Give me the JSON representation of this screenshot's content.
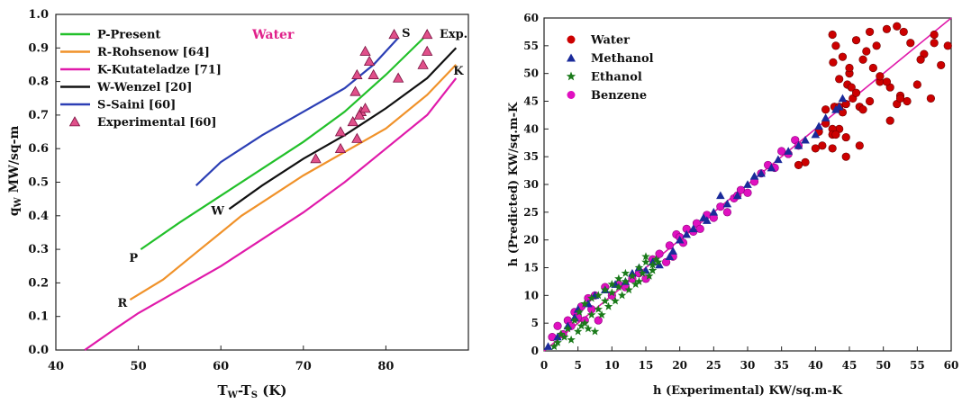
{
  "chart_data": [
    {
      "type": "line",
      "title": "",
      "annotation": "Water",
      "xlabel_main": "T",
      "xlabel_sub1": "W",
      "xlabel_mid": "-T",
      "xlabel_sub2": "S",
      "xlabel_unit": " (K)",
      "ylabel_main": "q",
      "ylabel_sub": "W",
      "ylabel_unit": " MW/sq-m",
      "xlim": [
        40,
        90
      ],
      "ylim": [
        0,
        1.0
      ],
      "xticks": [
        "40",
        "50",
        "60",
        "70",
        "80"
      ],
      "xtick_values": [
        40,
        50,
        60,
        70,
        80
      ],
      "yticks": [
        "0.0",
        "0.1",
        "0.2",
        "0.3",
        "0.4",
        "0.5",
        "0.6",
        "0.7",
        "0.8",
        "0.9",
        "1.0"
      ],
      "ytick_values": [
        0,
        0.1,
        0.2,
        0.3,
        0.4,
        0.5,
        0.6,
        0.7,
        0.8,
        0.9,
        1.0
      ],
      "grid": false,
      "legend_position": "top-left",
      "series": [
        {
          "name": "P-Present",
          "tag": "P",
          "color": "#22c02a",
          "x": [
            50.3,
            55,
            60,
            65,
            70,
            75,
            80,
            85
          ],
          "y": [
            0.3,
            0.38,
            0.46,
            0.54,
            0.62,
            0.71,
            0.82,
            0.94
          ]
        },
        {
          "name": "R-Rohsenow [64]",
          "tag": "R",
          "color": "#f0922a",
          "x": [
            49,
            53,
            57,
            60,
            62.5,
            65,
            70,
            75,
            80,
            85,
            88.5
          ],
          "y": [
            0.15,
            0.21,
            0.29,
            0.35,
            0.4,
            0.44,
            0.52,
            0.59,
            0.66,
            0.76,
            0.85
          ]
        },
        {
          "name": "K-Kutateladze [71]",
          "tag": "K",
          "color": "#e01aaa",
          "x": [
            43.5,
            47,
            50,
            55,
            60,
            65,
            70,
            75,
            80,
            85,
            88.5
          ],
          "y": [
            0.0,
            0.06,
            0.11,
            0.18,
            0.25,
            0.33,
            0.41,
            0.5,
            0.6,
            0.7,
            0.81
          ]
        },
        {
          "name": "W-Wenzel [20]",
          "tag": "W",
          "color": "#111111",
          "x": [
            61,
            65,
            70,
            75,
            80,
            85,
            88.5
          ],
          "y": [
            0.42,
            0.49,
            0.57,
            0.64,
            0.72,
            0.81,
            0.9
          ]
        },
        {
          "name": "S-Saini [60]",
          "tag": "S",
          "color": "#2c3fb5",
          "x": [
            57,
            60,
            65,
            70,
            75,
            78.5,
            81.5
          ],
          "y": [
            0.49,
            0.56,
            0.64,
            0.71,
            0.78,
            0.85,
            0.93
          ]
        },
        {
          "name": "Experimental [60]",
          "tag": "Exp.",
          "color": "#e0508a",
          "marker": "triangle",
          "x": [
            71.5,
            74.5,
            74.5,
            76,
            76.5,
            77,
            76.8,
            77.5,
            76.3,
            78.5,
            78,
            77.5,
            76.5,
            81.5,
            81,
            85,
            84.5,
            85
          ],
          "y": [
            0.57,
            0.6,
            0.65,
            0.68,
            0.63,
            0.71,
            0.7,
            0.72,
            0.77,
            0.82,
            0.86,
            0.89,
            0.82,
            0.81,
            0.94,
            0.94,
            0.85,
            0.89
          ]
        }
      ]
    },
    {
      "type": "scatter",
      "title": "",
      "xlabel": "h (Experimental) KW/sq.m-K",
      "ylabel": "h (Predicted) KW/sq.m-K",
      "xlim": [
        0,
        60
      ],
      "ylim": [
        0,
        60
      ],
      "xticks": [
        "0",
        "5",
        "10",
        "15",
        "20",
        "25",
        "30",
        "35",
        "40",
        "45",
        "50",
        "55",
        "60"
      ],
      "yticks": [
        "0",
        "5",
        "10",
        "15",
        "20",
        "25",
        "30",
        "35",
        "40",
        "45",
        "50",
        "55",
        "60"
      ],
      "tick_values": [
        0,
        5,
        10,
        15,
        20,
        25,
        30,
        35,
        40,
        45,
        50,
        55,
        60
      ],
      "grid": false,
      "legend_position": "top-left",
      "reference_line": {
        "x": [
          0,
          60
        ],
        "y": [
          0,
          60
        ],
        "color": "#e01aaa"
      },
      "series": [
        {
          "name": "Water",
          "color": "#cc0000",
          "marker": "circle",
          "x": [
            42.5,
            43,
            44,
            45,
            42.6,
            44.7,
            45.3,
            43.5,
            45,
            42.8,
            44,
            45.5,
            46.5,
            47,
            48,
            49.5,
            51,
            52.5,
            53.5,
            55,
            57,
            58.5,
            59.5,
            57.5,
            56,
            54,
            52,
            50.5,
            49,
            48,
            47,
            46,
            44.5,
            43.5,
            42.5,
            41.5,
            41,
            42.5,
            44.5,
            46.5,
            49.5,
            51,
            52,
            55.5,
            57.5,
            41.5,
            43.5,
            48.5,
            50.5,
            52.5,
            40,
            40.5,
            42.5,
            38.5,
            37.5,
            43,
            44.5,
            46,
            53,
            47.5
          ],
          "y": [
            57,
            55,
            53,
            50,
            52,
            48,
            47.5,
            49,
            51,
            44,
            43,
            45.5,
            44,
            43.5,
            45,
            48.5,
            47.5,
            46,
            45,
            48,
            45.5,
            51.5,
            55,
            57,
            53.5,
            55.5,
            58.5,
            58,
            55,
            57.5,
            52.5,
            56,
            44.5,
            40,
            40,
            41,
            37,
            36.5,
            35,
            37,
            49.5,
            41.5,
            44.5,
            52.5,
            55.5,
            43.5,
            44,
            51,
            48.5,
            45.5,
            36.5,
            39.5,
            39,
            34,
            33.5,
            39,
            38.5,
            46.5,
            57.5,
            54
          ]
        },
        {
          "name": "Methanol",
          "color": "#1a2a9a",
          "marker": "triangle",
          "x": [
            0.6,
            2,
            3.5,
            4.5,
            5,
            6.5,
            7.5,
            9,
            10.5,
            12,
            13,
            14,
            15,
            16,
            17,
            18.5,
            19,
            20,
            21,
            22,
            23.5,
            24,
            25,
            26,
            27,
            28.5,
            30,
            31,
            32,
            33.5,
            34.5,
            36,
            37.5,
            38.5,
            40,
            40.5,
            41.5,
            43,
            43.5,
            44
          ],
          "y": [
            0.8,
            2.5,
            4.5,
            6,
            7.5,
            8.5,
            10,
            11,
            12,
            12.5,
            14,
            15,
            14.5,
            16,
            15.5,
            17,
            18,
            20,
            21,
            22,
            24,
            23.5,
            25,
            28,
            26.5,
            28,
            30,
            31.5,
            32,
            33,
            34.5,
            36,
            37,
            38,
            39,
            40.5,
            42,
            43.5,
            44,
            45.5
          ]
        },
        {
          "name": "Ethanol",
          "color": "#1a7a1a",
          "marker": "star",
          "x": [
            1.5,
            2,
            2.5,
            3,
            3.5,
            4,
            4.5,
            5,
            5.2,
            5.5,
            6,
            6,
            6.5,
            7,
            7,
            7.5,
            8,
            8,
            8.5,
            9,
            9,
            9.5,
            10,
            10,
            10.5,
            11,
            11,
            11.5,
            12,
            12,
            12.5,
            13,
            13.5,
            14,
            14,
            14.5,
            15,
            15.5,
            16,
            16.5,
            16.8,
            16,
            15
          ],
          "y": [
            0.8,
            1.5,
            3,
            2.5,
            4,
            2,
            5.5,
            3.5,
            7,
            4.5,
            5,
            8.5,
            4,
            6.5,
            9.5,
            3.5,
            7.5,
            10,
            6.5,
            9,
            11,
            8,
            10.5,
            12,
            9,
            11.5,
            13,
            10,
            12.5,
            14,
            11,
            13.5,
            12,
            15,
            12.5,
            14,
            16,
            13.5,
            15.5,
            16.5,
            16,
            14.5,
            17
          ]
        },
        {
          "name": "Benzene",
          "color": "#e010c0",
          "marker": "circle",
          "x": [
            1.2,
            2,
            2.8,
            3.5,
            4,
            4.5,
            5,
            5.5,
            6,
            6.5,
            7,
            7.5,
            8,
            9,
            10,
            11,
            12,
            13,
            14,
            15,
            16,
            17,
            18,
            18.5,
            19,
            19.5,
            20,
            20.5,
            21,
            22,
            22.5,
            23,
            24,
            25,
            26,
            27,
            28,
            28.5,
            29,
            30,
            31,
            32,
            33,
            34,
            35,
            36,
            37,
            37.5
          ],
          "y": [
            2.5,
            4.5,
            3,
            5.5,
            4.5,
            7,
            6,
            8,
            5.5,
            9.5,
            7.5,
            10,
            5.5,
            11.5,
            10,
            12,
            11.5,
            13,
            14,
            13,
            16.5,
            17.5,
            16,
            19,
            17,
            21,
            20.5,
            19.5,
            22,
            21.5,
            23,
            22,
            24.5,
            24,
            26,
            25,
            27.5,
            28,
            29,
            28.5,
            30.5,
            32,
            33.5,
            33,
            36,
            35.5,
            38,
            37
          ]
        }
      ]
    }
  ]
}
